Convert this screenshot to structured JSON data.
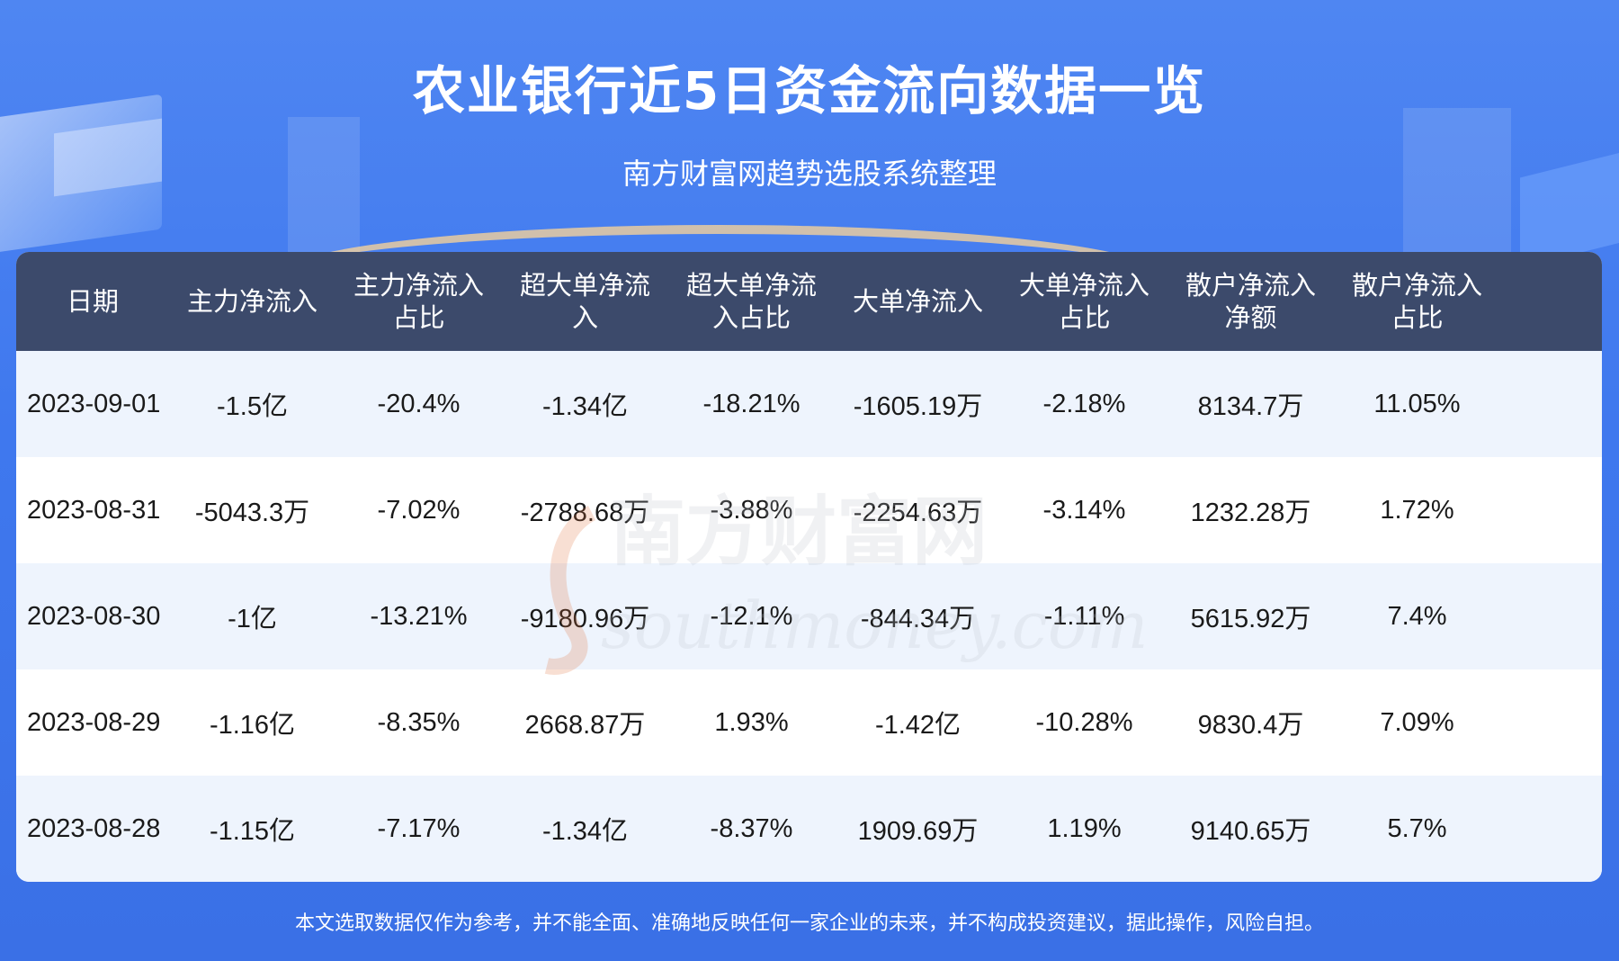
{
  "header": {
    "title": "农业银行近5日资金流向数据一览",
    "subtitle": "南方财富网趋势选股系统整理"
  },
  "watermark": {
    "cn": "南方财富网",
    "en": "southmoney.com"
  },
  "chart_data": {
    "type": "table",
    "columns": [
      "日期",
      "主力净流入",
      "主力净流入占比",
      "超大单净流入",
      "超大单净流入占比",
      "大单净流入",
      "大单净流入占比",
      "散户净流入净额",
      "散户净流入占比"
    ],
    "header_lines": [
      [
        "日期"
      ],
      [
        "主力净流入"
      ],
      [
        "主力净流入",
        "占比"
      ],
      [
        "超大单净流",
        "入"
      ],
      [
        "超大单净流",
        "入占比"
      ],
      [
        "大单净流入"
      ],
      [
        "大单净流入",
        "占比"
      ],
      [
        "散户净流入",
        "净额"
      ],
      [
        "散户净流入",
        "占比"
      ]
    ],
    "rows": [
      [
        "2023-09-01",
        "-1.5亿",
        "-20.4%",
        "-1.34亿",
        "-18.21%",
        "-1605.19万",
        "-2.18%",
        "8134.7万",
        "11.05%"
      ],
      [
        "2023-08-31",
        "-5043.3万",
        "-7.02%",
        "-2788.68万",
        "-3.88%",
        "-2254.63万",
        "-3.14%",
        "1232.28万",
        "1.72%"
      ],
      [
        "2023-08-30",
        "-1亿",
        "-13.21%",
        "-9180.96万",
        "-12.1%",
        "-844.34万",
        "-1.11%",
        "5615.92万",
        "7.4%"
      ],
      [
        "2023-08-29",
        "-1.16亿",
        "-8.35%",
        "2668.87万",
        "1.93%",
        "-1.42亿",
        "-10.28%",
        "9830.4万",
        "7.09%"
      ],
      [
        "2023-08-28",
        "-1.15亿",
        "-7.17%",
        "-1.34亿",
        "-8.37%",
        "1909.69万",
        "1.19%",
        "9140.65万",
        "5.7%"
      ]
    ]
  },
  "footer": {
    "disclaimer": "本文选取数据仅作为参考，并不能全面、准确地反映任何一家企业的未来，并不构成投资建议，据此操作，风险自担。"
  }
}
